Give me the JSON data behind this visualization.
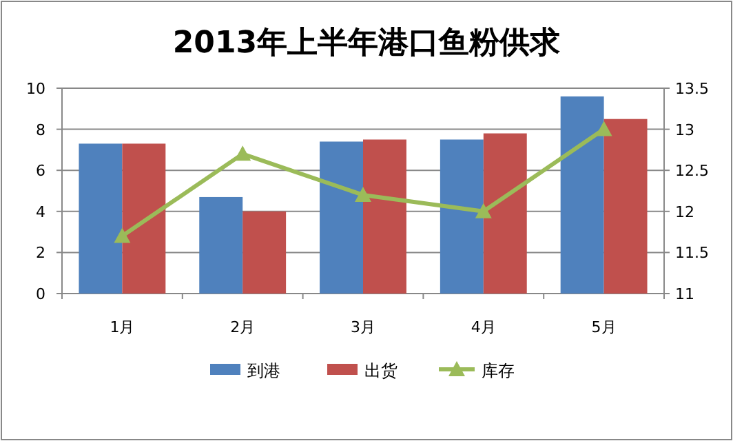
{
  "chart_data": {
    "type": "bar",
    "title": "2013年上半年港口鱼粉供求",
    "categories": [
      "1月",
      "2月",
      "3月",
      "4月",
      "5月"
    ],
    "series": [
      {
        "name": "到港",
        "color": "#4f81bd",
        "values": [
          7.3,
          4.7,
          7.4,
          7.5,
          9.6
        ]
      },
      {
        "name": "出货",
        "color": "#c0504d",
        "values": [
          7.3,
          4.0,
          7.5,
          7.8,
          8.5
        ]
      },
      {
        "name": "库存",
        "color": "#9bbb59",
        "type": "line",
        "axis": "y2",
        "marker": "triangle",
        "values": [
          11.7,
          12.7,
          12.2,
          12.0,
          13.0
        ]
      }
    ],
    "ylim": [
      0,
      10
    ],
    "yticks": [
      0,
      2,
      4,
      6,
      8,
      10
    ],
    "y2lim": [
      11,
      13.5
    ],
    "y2ticks": [
      11,
      11.5,
      12,
      12.5,
      13,
      13.5
    ],
    "grid": "y",
    "legend": "bottom"
  }
}
